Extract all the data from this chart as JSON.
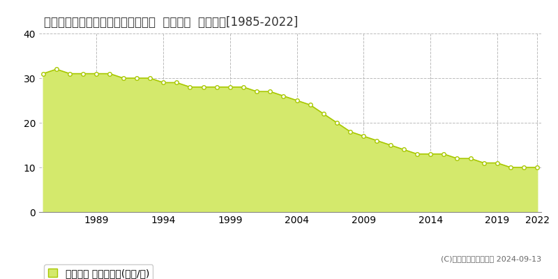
{
  "title": "北海道登別市中央町２丁目１２番８  地価公示  地価推移[1985-2022]",
  "years": [
    1985,
    1986,
    1987,
    1988,
    1989,
    1990,
    1991,
    1992,
    1993,
    1994,
    1995,
    1996,
    1997,
    1998,
    1999,
    2000,
    2001,
    2002,
    2003,
    2004,
    2005,
    2006,
    2007,
    2008,
    2009,
    2010,
    2011,
    2012,
    2013,
    2014,
    2015,
    2016,
    2017,
    2018,
    2019,
    2020,
    2021,
    2022
  ],
  "values": [
    31,
    32,
    31,
    31,
    31,
    31,
    30,
    30,
    30,
    29,
    29,
    28,
    28,
    28,
    28,
    28,
    27,
    27,
    26,
    25,
    24,
    22,
    20,
    18,
    17,
    16,
    15,
    14,
    13,
    13,
    13,
    12,
    12,
    11,
    11,
    10,
    10,
    10
  ],
  "fill_color": "#d4e96c",
  "line_color": "#a8c800",
  "marker_color": "#ffffff",
  "marker_edge_color": "#a8c800",
  "grid_color": "#bbbbbb",
  "background_color": "#ffffff",
  "plot_bg_color": "#ffffff",
  "ylim": [
    0,
    40
  ],
  "yticks": [
    0,
    10,
    20,
    30,
    40
  ],
  "xtick_years": [
    1989,
    1994,
    1999,
    2004,
    2009,
    2014,
    2019,
    2022
  ],
  "legend_label": "地価公示 平均坪単価(万円/坪)",
  "copyright_text": "(C)土地価格ドットコム 2024-09-13",
  "title_fontsize": 12,
  "axis_fontsize": 9,
  "legend_fontsize": 10,
  "copyright_fontsize": 8
}
